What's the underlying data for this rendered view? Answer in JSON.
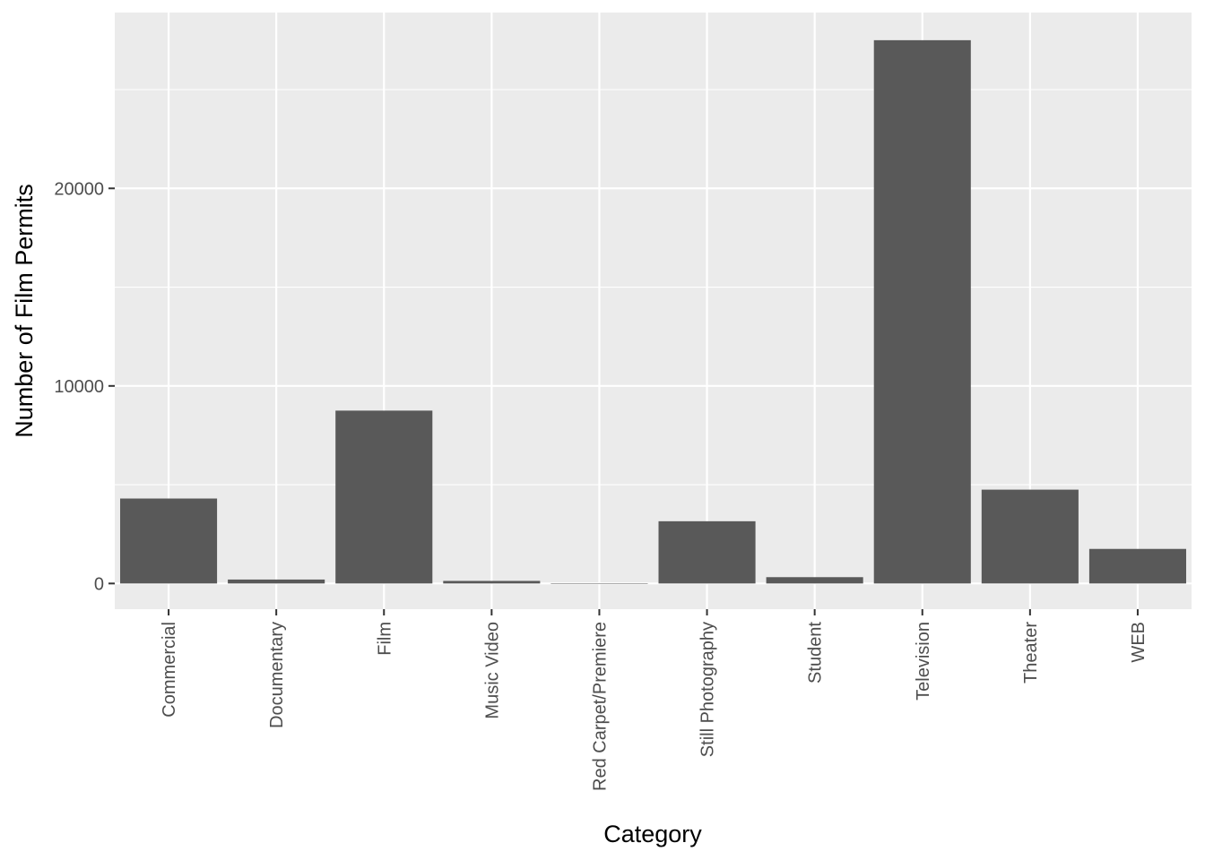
{
  "chart_data": {
    "type": "bar",
    "title": "",
    "xlabel": "Category",
    "ylabel": "Number of Film Permits",
    "categories": [
      "Commercial",
      "Documentary",
      "Film",
      "Music Video",
      "Red Carpet/Premiere",
      "Still Photography",
      "Student",
      "Television",
      "Theater",
      "WEB"
    ],
    "values": [
      4300,
      200,
      8750,
      130,
      10,
      3150,
      320,
      27500,
      4750,
      1750
    ],
    "ylim": [
      -1300,
      28900
    ],
    "yticks": [
      0,
      10000,
      20000
    ],
    "yticklabels": [
      "0",
      "10000",
      "20000"
    ],
    "grid": true,
    "colors": {
      "bar": "#595959",
      "panel": "#ebebeb",
      "grid_major": "#ffffff",
      "tick": "#333333"
    }
  }
}
